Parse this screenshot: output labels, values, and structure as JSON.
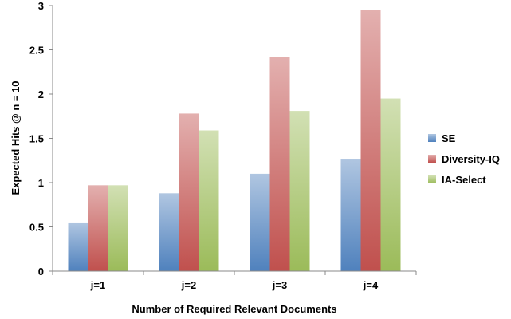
{
  "chart_data": {
    "type": "bar",
    "categories": [
      "j=1",
      "j=2",
      "j=3",
      "j=4"
    ],
    "series": [
      {
        "name": "SE",
        "values": [
          0.55,
          0.88,
          1.1,
          1.27
        ],
        "color": "#4f81bd"
      },
      {
        "name": "Diversity-IQ",
        "values": [
          0.97,
          1.78,
          2.42,
          2.95
        ],
        "color": "#c0504d"
      },
      {
        "name": "IA-Select",
        "values": [
          0.97,
          1.59,
          1.81,
          1.95
        ],
        "color": "#9bbb59"
      }
    ],
    "title": "",
    "xlabel": "Number of Required Relevant Documents",
    "ylabel": "Expected Hits @ n = 10",
    "ylim": [
      0,
      3
    ],
    "yticks": [
      "0",
      "0.5",
      "1",
      "1.5",
      "2",
      "2.5",
      "3"
    ],
    "ytick_values": [
      0,
      0.5,
      1,
      1.5,
      2,
      2.5,
      3
    ],
    "grid": false,
    "legend_position": "right"
  }
}
